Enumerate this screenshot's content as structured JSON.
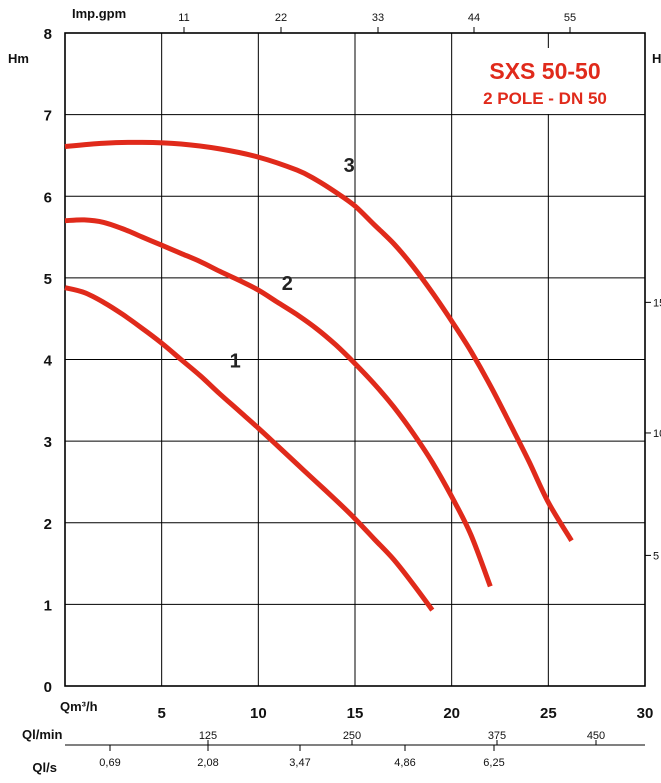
{
  "chart_data": {
    "type": "line",
    "title": "SXS 50-50",
    "subtitle": "2 POLE - DN 50",
    "colors": {
      "curve": "#e02a1b",
      "grid": "#000000"
    },
    "grid": true,
    "ylabel": "Hm",
    "ylim": [
      0,
      8
    ],
    "y_ticks": [
      "0",
      "1",
      "2",
      "3",
      "4",
      "5",
      "6",
      "7",
      "8"
    ],
    "right_axis": {
      "label": "H",
      "ticks": [
        "15",
        "10",
        "5"
      ]
    },
    "xlabel": "Qm³/h",
    "xlim": [
      0,
      30
    ],
    "x_ticks": [
      "5",
      "10",
      "15",
      "20",
      "25",
      "30"
    ],
    "top_axis": {
      "label": "Imp.gpm",
      "ticks": [
        "11",
        "22",
        "33",
        "44",
        "55"
      ]
    },
    "secondary_axes": [
      {
        "label": "Ql/min",
        "ticks": [
          "125",
          "250",
          "375",
          "450"
        ]
      },
      {
        "label": "Ql/s",
        "ticks": [
          "0,69",
          "2,08",
          "3,47",
          "4,86",
          "6,25"
        ]
      }
    ],
    "series": [
      {
        "name": "1",
        "x": [
          0,
          1,
          2,
          3,
          4,
          5,
          6,
          7,
          8,
          9,
          10,
          11,
          12,
          13,
          14,
          15,
          16,
          17,
          18,
          19
        ],
        "y": [
          4.88,
          4.82,
          4.7,
          4.55,
          4.38,
          4.2,
          4.0,
          3.8,
          3.58,
          3.37,
          3.16,
          2.94,
          2.72,
          2.5,
          2.28,
          2.05,
          1.8,
          1.55,
          1.25,
          0.93
        ]
      },
      {
        "name": "2",
        "x": [
          0,
          1,
          2,
          3,
          4,
          5,
          6,
          7,
          8,
          9,
          10,
          11,
          12,
          13,
          14,
          15,
          16,
          17,
          18,
          19,
          20,
          21,
          22
        ],
        "y": [
          5.7,
          5.71,
          5.68,
          5.6,
          5.5,
          5.4,
          5.3,
          5.2,
          5.08,
          4.97,
          4.85,
          4.7,
          4.55,
          4.38,
          4.18,
          3.95,
          3.7,
          3.42,
          3.1,
          2.74,
          2.32,
          1.85,
          1.22
        ]
      },
      {
        "name": "3",
        "x": [
          0,
          2,
          4,
          6,
          8,
          10,
          12,
          13,
          14,
          15,
          16,
          17,
          18,
          19,
          20,
          21,
          22,
          23,
          24,
          25,
          26.2
        ],
        "y": [
          6.61,
          6.65,
          6.66,
          6.64,
          6.58,
          6.48,
          6.32,
          6.2,
          6.05,
          5.88,
          5.65,
          5.42,
          5.14,
          4.82,
          4.47,
          4.1,
          3.68,
          3.22,
          2.75,
          2.25,
          1.78
        ]
      }
    ]
  }
}
